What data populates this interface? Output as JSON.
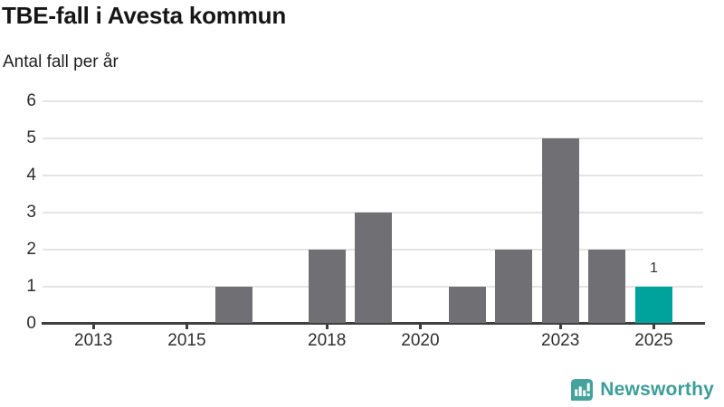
{
  "header": {
    "title": "TBE-fall i Avesta kommun",
    "subtitle": "Antal fall per år"
  },
  "chart_data": {
    "type": "bar",
    "title": "TBE-fall i Avesta kommun",
    "ylabel": "Antal fall per år",
    "xlabel": "",
    "categories": [
      "2013",
      "2014",
      "2015",
      "2016",
      "2017",
      "2018",
      "2019",
      "2020",
      "2021",
      "2022",
      "2023",
      "2024",
      "2025"
    ],
    "values": [
      0,
      0,
      0,
      1,
      0,
      2,
      3,
      0,
      1,
      2,
      5,
      2,
      1
    ],
    "ylim": [
      0,
      6
    ],
    "y_ticks": [
      0,
      1,
      2,
      3,
      4,
      5,
      6
    ],
    "x_tick_labels": [
      "2013",
      "2015",
      "2018",
      "2020",
      "2023",
      "2025"
    ],
    "grid": "horizontal",
    "legend": "none",
    "highlight": {
      "category": "2025",
      "value": 1,
      "value_label": "1"
    },
    "colors": {
      "bar": "#6f6f74",
      "highlight_bar": "#00a39b",
      "gridline": "#e4e4e4",
      "axis": "#3e3e3e",
      "axis_text": "#2e2e2e",
      "label_text": "#333333"
    }
  },
  "footer": {
    "brand": "Newsworthy",
    "brand_color": "#3b9e99",
    "logo_color": "#45a29d",
    "logo_icon": "bar-chart-speech-bubble-icon"
  }
}
